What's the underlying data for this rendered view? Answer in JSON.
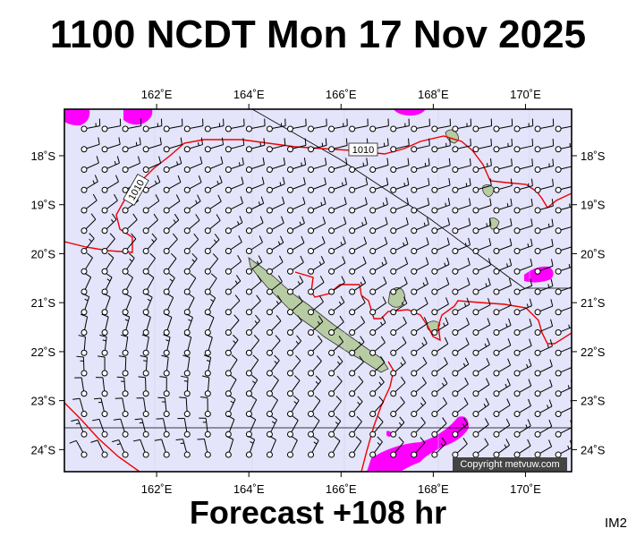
{
  "title": "1100 NCDT Mon 17 Nov 2025",
  "footer": "Forecast +108 hr",
  "tag": "IM2",
  "copyright": "Copyright metvuw.com",
  "map": {
    "lon_range": [
      160.0,
      171.0
    ],
    "lat_range": [
      -24.45,
      -17.05
    ],
    "lon_ticks": [
      {
        "value": 162,
        "label": "162˚E"
      },
      {
        "value": 164,
        "label": "164˚E"
      },
      {
        "value": 166,
        "label": "166˚E"
      },
      {
        "value": 168,
        "label": "168˚E"
      },
      {
        "value": 170,
        "label": "170˚E"
      }
    ],
    "lat_ticks": [
      {
        "value": -18,
        "label": "18˚S"
      },
      {
        "value": -19,
        "label": "19˚S"
      },
      {
        "value": -20,
        "label": "20˚S"
      },
      {
        "value": -21,
        "label": "21˚S"
      },
      {
        "value": -22,
        "label": "22˚S"
      },
      {
        "value": -23,
        "label": "23˚S"
      },
      {
        "value": -24,
        "label": "24˚S"
      }
    ],
    "isobar_labels": [
      "1010",
      "1010"
    ],
    "colors": {
      "sea": "#e4e4fa",
      "land": "#b8cca4",
      "isobar": "#ee0000",
      "rain": "#ff00ff",
      "border": "#000000"
    }
  }
}
